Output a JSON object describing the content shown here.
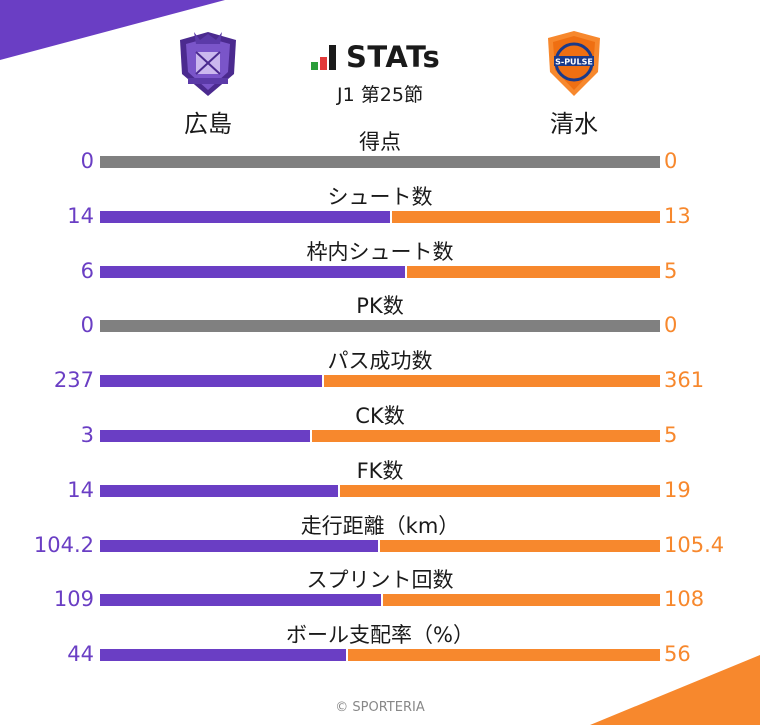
{
  "brand": {
    "logo_text": "STATs",
    "round": "J1 第25節"
  },
  "teams": {
    "home": {
      "name": "広島",
      "color": "#6a3ec4",
      "crest_icon": "sanfrecce-crest-icon"
    },
    "away": {
      "name": "清水",
      "color": "#f7882d",
      "crest_icon": "s-pulse-crest-icon"
    }
  },
  "chart_data": {
    "type": "bar",
    "orientation": "horizontal-stacked-100",
    "categories": [
      "得点",
      "シュート数",
      "枠内シュート数",
      "PK数",
      "パス成功数",
      "CK数",
      "FK数",
      "走行距離（km）",
      "スプリント回数",
      "ボール支配率（%）"
    ],
    "series": [
      {
        "name": "広島",
        "values": [
          0,
          14,
          6,
          0,
          237,
          3,
          14,
          104.2,
          109,
          44
        ],
        "labels": [
          "0",
          "14",
          "6",
          "0",
          "237",
          "3",
          "14",
          "104.2",
          "109",
          "44"
        ],
        "color": "#6a3ec4"
      },
      {
        "name": "清水",
        "values": [
          0,
          13,
          5,
          0,
          361,
          5,
          19,
          105.4,
          108,
          56
        ],
        "labels": [
          "0",
          "13",
          "5",
          "0",
          "361",
          "5",
          "19",
          "105.4",
          "108",
          "56"
        ],
        "color": "#f7882d"
      }
    ],
    "zero_color": "#808080"
  },
  "footer": "© SPORTERIA"
}
